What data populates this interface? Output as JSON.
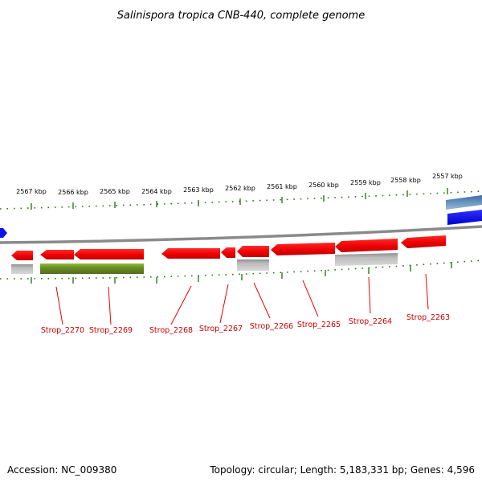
{
  "title": "Salinispora tropica CNB-440, complete genome",
  "footer": {
    "accession": "Accession: NC_009380",
    "summary": "Topology: circular; Length: 5,183,331 bp; Genes: 4,596"
  },
  "colors": {
    "gene_forward": "#ee0000",
    "gene_label": "#cc0000",
    "ticks": "#2a7a1a",
    "backbone": "#8a8a8a",
    "feature_gray": "#b5b5b5",
    "feature_olive": "#6b8e23",
    "feature_blue": "#1010ee",
    "feature_steelblue": "#4a7ab0"
  },
  "scale": {
    "unit": "kbp",
    "labels": [
      "2567 kbp",
      "2566 kbp",
      "2565 kbp",
      "2564 kbp",
      "2563 kbp",
      "2562 kbp",
      "2561 kbp",
      "2560 kbp",
      "2559 kbp",
      "2558 kbp",
      "2557 kbp"
    ]
  },
  "genes": [
    {
      "name": "Strop_2270",
      "strand": "-"
    },
    {
      "name": "Strop_2269",
      "strand": "-"
    },
    {
      "name": "Strop_2268",
      "strand": "-"
    },
    {
      "name": "Strop_2267",
      "strand": "-"
    },
    {
      "name": "Strop_2266",
      "strand": "-"
    },
    {
      "name": "Strop_2265",
      "strand": "-"
    },
    {
      "name": "Strop_2264",
      "strand": "-"
    },
    {
      "name": "Strop_2263",
      "strand": "-"
    }
  ]
}
